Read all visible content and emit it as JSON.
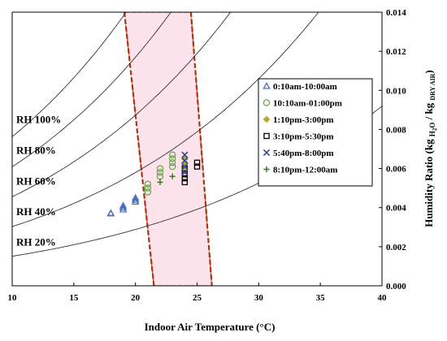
{
  "chart_data": {
    "type": "scatter",
    "xlabel": "Indoor Air Temperature (°C)",
    "ylabel": "Humidity Ratio (kg H2O / kg DRY AIR)",
    "ylabel_parts": {
      "lead": "Humidity Ratio (kg",
      "sub1": "H",
      "sub2": "2",
      "sub3": "O",
      "mid": "/ kg",
      "sub4": "DRY AIR",
      "tail": ")"
    },
    "xlim": [
      10,
      40
    ],
    "ylim": [
      0,
      0.014
    ],
    "x_ticks": [
      "10",
      "15",
      "20",
      "25",
      "30",
      "35",
      "40"
    ],
    "y_ticks": [
      "0.000",
      "0.002",
      "0.004",
      "0.006",
      "0.008",
      "0.010",
      "0.012",
      "0.014"
    ],
    "grid": false,
    "legend_position": "right",
    "rh_curves": [
      {
        "label": "RH 100%",
        "rh": 1.0
      },
      {
        "label": "RH 80%",
        "rh": 0.8
      },
      {
        "label": "RH 60%",
        "rh": 0.6
      },
      {
        "label": "RH 40%",
        "rh": 0.4
      },
      {
        "label": "RH 20%",
        "rh": 0.2
      }
    ],
    "comfort_zone": {
      "polygon": [
        [
          19.1,
          0.014
        ],
        [
          21.5,
          0.0
        ],
        [
          26.2,
          0.0
        ],
        [
          24.5,
          0.014
        ]
      ],
      "fill_color": "#fde3ec",
      "edge_color": "#ff2222",
      "line_color": "#a03a10"
    },
    "series": [
      {
        "name": "0:10am-10:00am",
        "marker": "triangle",
        "color": "#4a6fb5",
        "points": [
          [
            18,
            0.0037
          ],
          [
            18,
            0.00372
          ],
          [
            19,
            0.0039
          ],
          [
            19,
            0.004
          ],
          [
            19,
            0.0041
          ],
          [
            20,
            0.0043
          ],
          [
            20,
            0.0044
          ],
          [
            20,
            0.0045
          ]
        ]
      },
      {
        "name": "10:10am-01:00pm",
        "marker": "circle",
        "color": "#6aa84f",
        "points": [
          [
            21,
            0.0048
          ],
          [
            21,
            0.005
          ],
          [
            21,
            0.0052
          ],
          [
            22,
            0.0056
          ],
          [
            22,
            0.0058
          ],
          [
            22,
            0.006
          ],
          [
            23,
            0.0061
          ],
          [
            23,
            0.0063
          ],
          [
            23,
            0.0065
          ],
          [
            23,
            0.0067
          ]
        ]
      },
      {
        "name": "1:10pm-3:00pm",
        "marker": "diamond",
        "color": "#b5a82a",
        "points": [
          [
            24,
            0.0059
          ],
          [
            24,
            0.0061
          ],
          [
            24,
            0.0063
          ],
          [
            24,
            0.0065
          ]
        ]
      },
      {
        "name": "3:10pm-5:30pm",
        "marker": "square",
        "color": "#000000",
        "points": [
          [
            24,
            0.0053
          ],
          [
            24,
            0.0055
          ],
          [
            24,
            0.0057
          ],
          [
            24,
            0.006
          ],
          [
            25,
            0.0061
          ],
          [
            25,
            0.0063
          ]
        ]
      },
      {
        "name": "5:40pm-8:00pm",
        "marker": "x",
        "color": "#3b4a8c",
        "points": [
          [
            24,
            0.0058
          ],
          [
            24,
            0.0061
          ],
          [
            24,
            0.0064
          ],
          [
            24,
            0.0067
          ]
        ]
      },
      {
        "name": "8:10pm-12:00am",
        "marker": "plus",
        "color": "#3d6b2a",
        "points": [
          [
            22,
            0.0053
          ],
          [
            23,
            0.0056
          ]
        ]
      }
    ]
  }
}
